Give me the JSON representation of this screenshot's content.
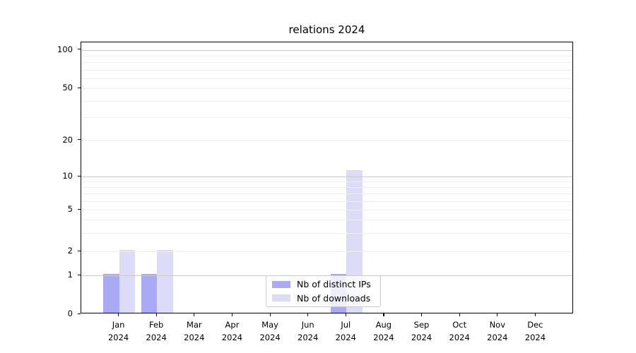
{
  "chart_data": {
    "type": "bar",
    "title": "relations 2024",
    "categories": [
      "Jan",
      "Feb",
      "Mar",
      "Apr",
      "May",
      "Jun",
      "Jul",
      "Aug",
      "Sep",
      "Oct",
      "Nov",
      "Dec"
    ],
    "year_label": "2024",
    "series": [
      {
        "name": "Nb of distinct IPs",
        "color": "#a9a9f6",
        "values": [
          1,
          1,
          0,
          0,
          0,
          0,
          1,
          0,
          0,
          0,
          0,
          0
        ]
      },
      {
        "name": "Nb of downloads",
        "color": "#dcdcf9",
        "values": [
          2,
          2,
          0,
          0,
          0,
          0,
          11,
          0,
          0,
          0,
          0,
          0
        ]
      }
    ],
    "yscale": "symlog",
    "y_ticks": [
      100,
      50,
      20,
      10,
      5,
      2,
      1,
      0
    ],
    "y_minor_gridlines": [
      2,
      3,
      4,
      5,
      6,
      7,
      8,
      9,
      20,
      30,
      40,
      50,
      60,
      70,
      80,
      90
    ],
    "y_major_gridlines": [
      1,
      10,
      100
    ],
    "ylim": [
      0,
      114
    ],
    "grid": true,
    "legend_position": "lower center"
  }
}
